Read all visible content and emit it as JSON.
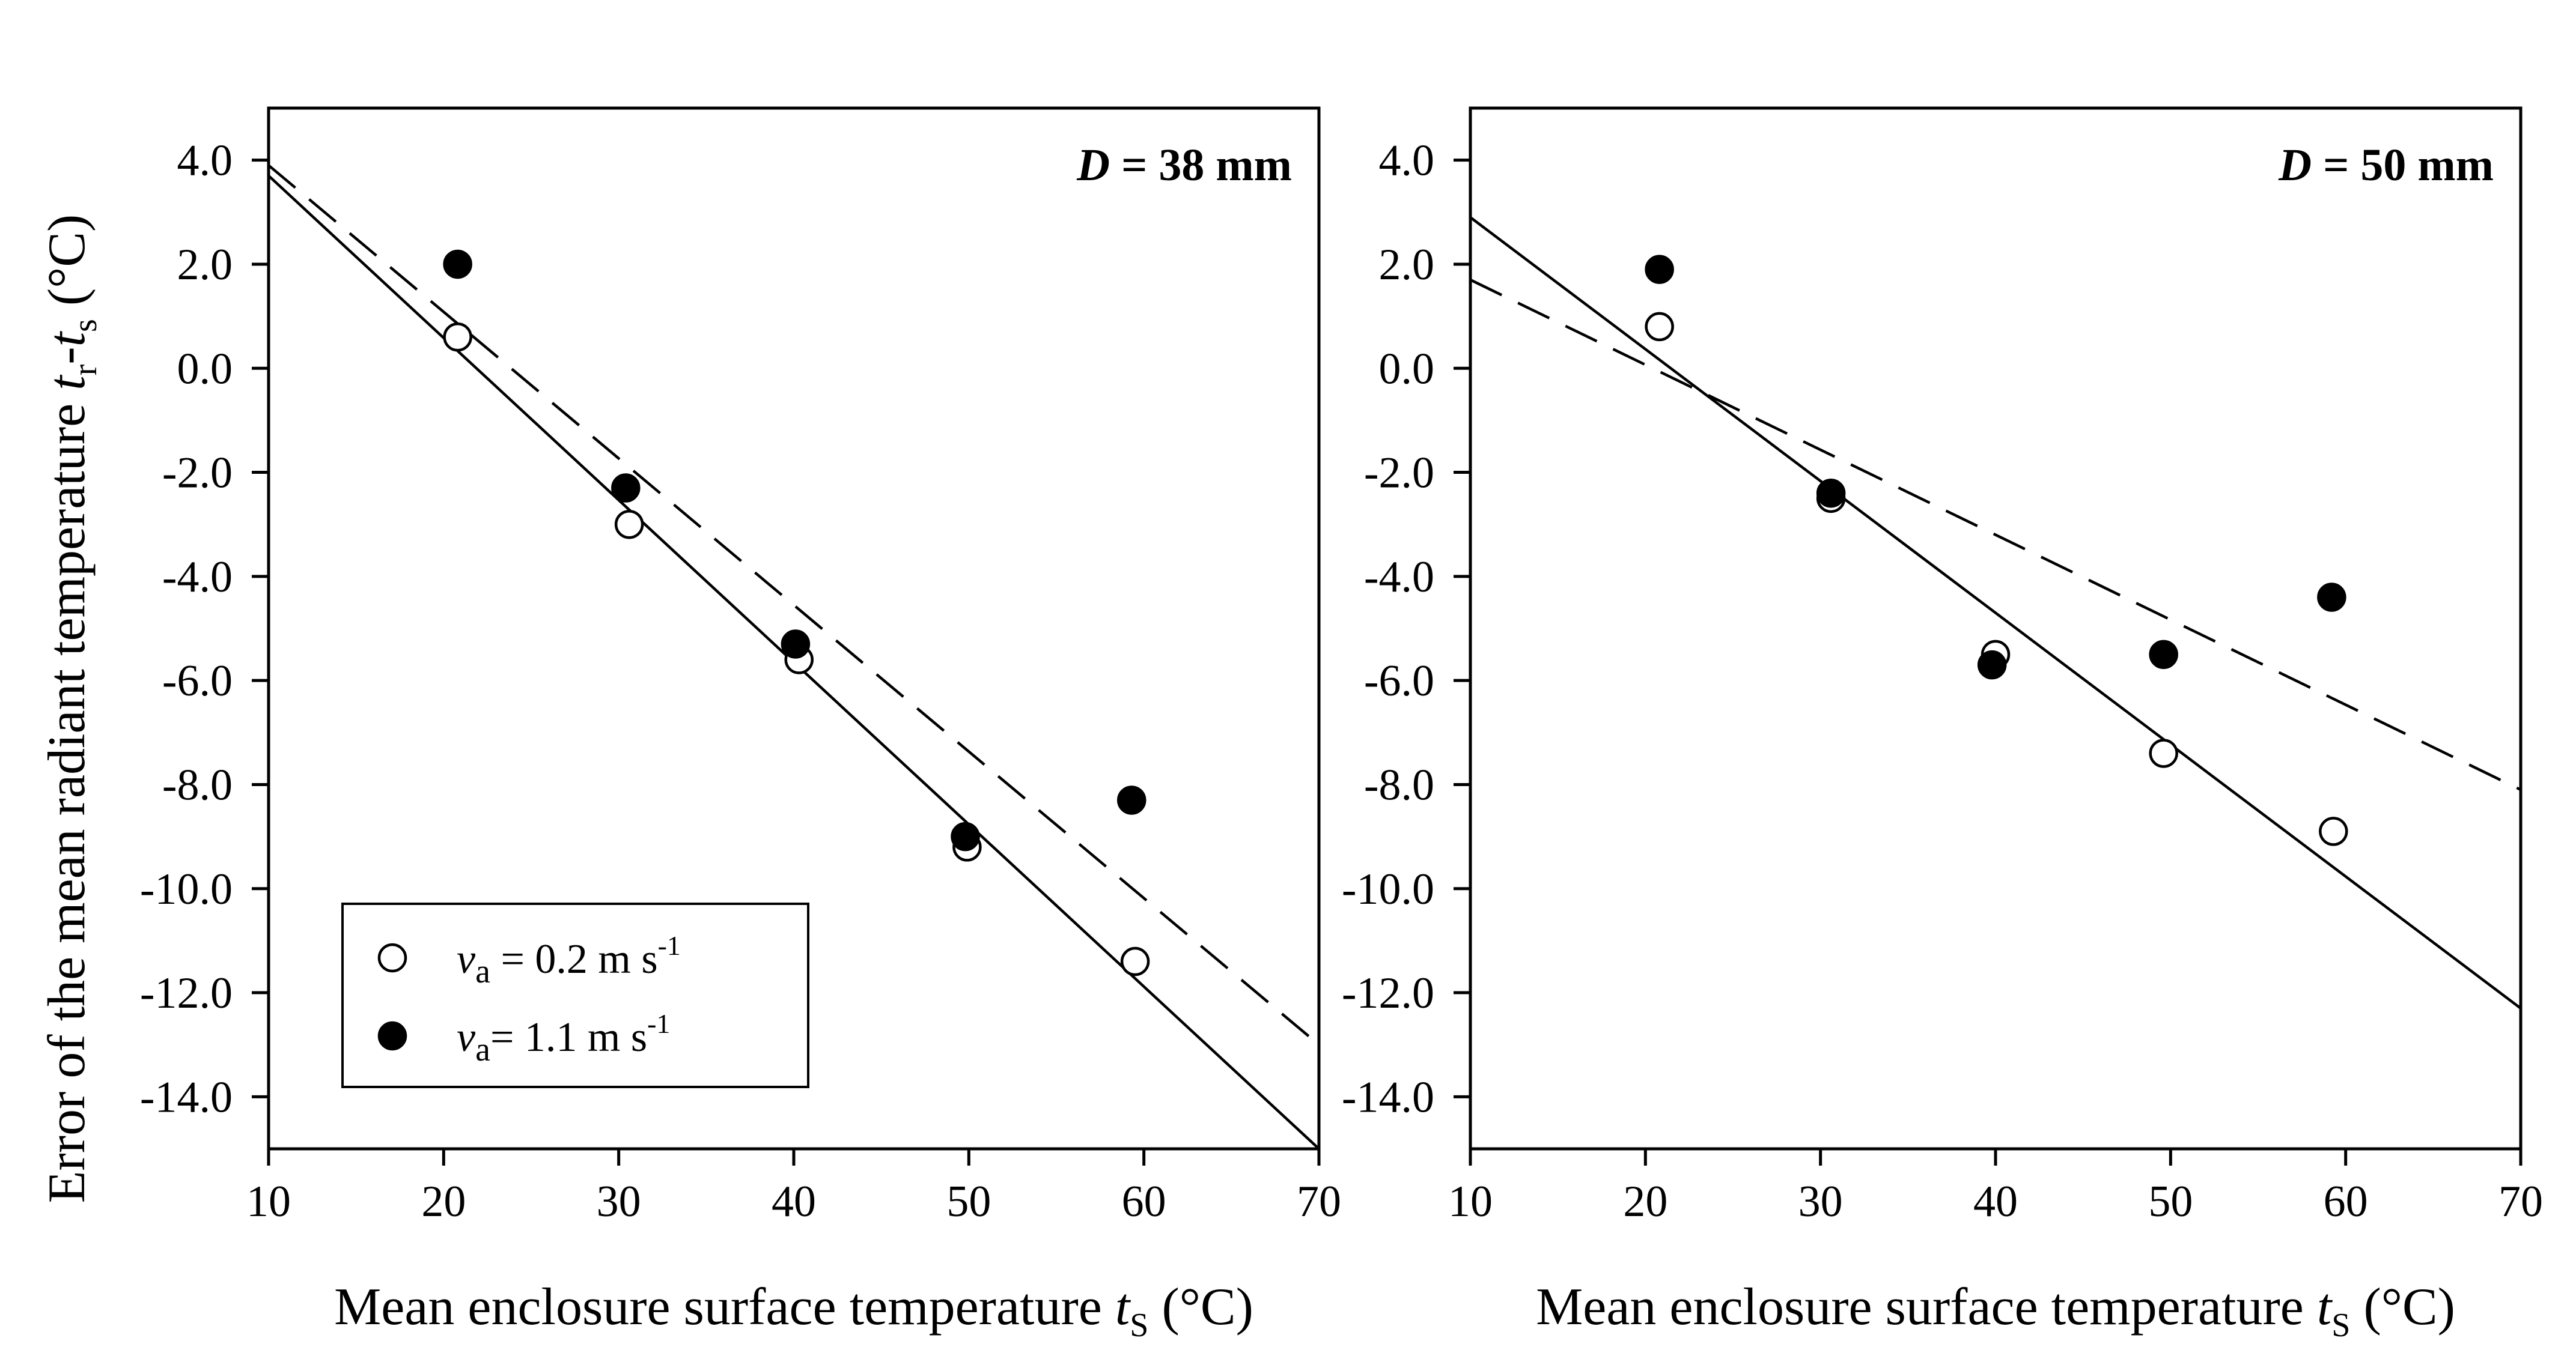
{
  "figure": {
    "ylabel": {
      "main": "Error of the mean radiant temperature ",
      "var1": "t",
      "sub1": "r",
      "dash": "-",
      "var2": "t",
      "sub2": "s",
      "unit": " (°C)"
    },
    "xlabel": {
      "main": "Mean enclosure surface temperature ",
      "var": "t",
      "sub": "S",
      "unit": " (°C)"
    }
  },
  "legend": {
    "items": [
      {
        "marker": "open-circle",
        "var": "v",
        "sub": "a",
        "text": " = 0.2 m s",
        "sup": "-1"
      },
      {
        "marker": "filled-circle",
        "var": "v",
        "sub": "a",
        "text": "= 1.1 m s",
        "sup": "-1"
      }
    ]
  },
  "chart_data": [
    {
      "type": "scatter",
      "panel_label": {
        "var": "D",
        "text": " = 38 mm"
      },
      "xlim": [
        10,
        70
      ],
      "ylim": [
        -15,
        5
      ],
      "xticks": [
        "10",
        "20",
        "30",
        "40",
        "50",
        "60",
        "70"
      ],
      "yticks": [
        "4.0",
        "2.0",
        "0.0",
        "-2.0",
        "-4.0",
        "-6.0",
        "-8.0",
        "-10.0",
        "-12.0",
        "-14.0"
      ],
      "grid": false,
      "legend_position": "bottom-left",
      "series": [
        {
          "marker": "open-circle",
          "points": [
            [
              20.8,
              0.6
            ],
            [
              30.6,
              -3.0
            ],
            [
              40.3,
              -5.6
            ],
            [
              49.9,
              -9.2
            ],
            [
              59.5,
              -11.4
            ]
          ],
          "fit_line": {
            "style": "solid",
            "from": [
              10,
              3.7
            ],
            "to": [
              70,
              -15.0
            ]
          }
        },
        {
          "marker": "filled-circle",
          "points": [
            [
              20.8,
              2.0
            ],
            [
              30.4,
              -2.3
            ],
            [
              40.1,
              -5.3
            ],
            [
              49.8,
              -9.0
            ],
            [
              59.3,
              -8.3
            ]
          ],
          "fit_line": {
            "style": "dashed",
            "from": [
              10,
              3.9
            ],
            "to": [
              70,
              -13.0
            ]
          }
        }
      ]
    },
    {
      "type": "scatter",
      "panel_label": {
        "var": "D",
        "text": " = 50 mm"
      },
      "xlim": [
        10,
        70
      ],
      "ylim": [
        -15,
        5
      ],
      "xticks": [
        "10",
        "20",
        "30",
        "40",
        "50",
        "60",
        "70"
      ],
      "yticks": [
        "4.0",
        "2.0",
        "0.0",
        "-2.0",
        "-4.0",
        "-6.0",
        "-8.0",
        "-10.0",
        "-12.0",
        "-14.0"
      ],
      "grid": false,
      "series": [
        {
          "marker": "open-circle",
          "points": [
            [
              20.8,
              0.8
            ],
            [
              30.6,
              -2.5
            ],
            [
              40.0,
              -5.5
            ],
            [
              49.6,
              -7.4
            ],
            [
              59.3,
              -8.9
            ]
          ],
          "fit_line": {
            "style": "solid",
            "from": [
              10,
              2.9
            ],
            "to": [
              70,
              -12.3
            ]
          }
        },
        {
          "marker": "filled-circle",
          "points": [
            [
              20.8,
              1.9
            ],
            [
              30.6,
              -2.4
            ],
            [
              39.8,
              -5.7
            ],
            [
              49.6,
              -5.5
            ],
            [
              59.2,
              -4.4
            ]
          ],
          "fit_line": {
            "style": "dashed",
            "from": [
              10,
              1.7
            ],
            "to": [
              70,
              -8.1
            ]
          }
        }
      ]
    }
  ]
}
